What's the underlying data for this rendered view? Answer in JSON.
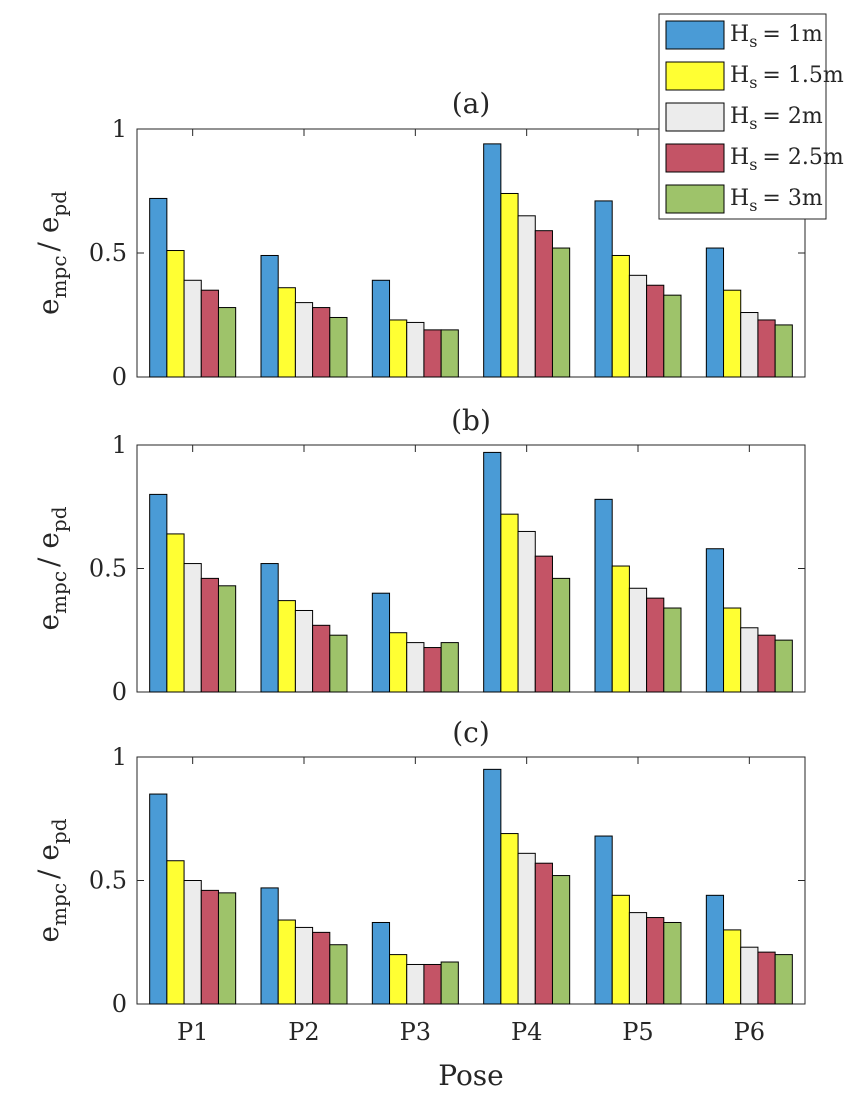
{
  "colors": {
    "series": [
      "#4a9bd6",
      "#ffff33",
      "#ececec",
      "#c45466",
      "#9ec36a"
    ],
    "axis": "#262626",
    "bar_edge": "#000000"
  },
  "xlabel": "Pose",
  "legend": {
    "prefix": "H",
    "subscript": "s",
    "values": [
      "= 1m",
      "= 1.5m",
      "= 2m",
      "= 2.5m",
      "= 3m"
    ]
  },
  "chart_data": [
    {
      "type": "bar",
      "title": "(a)",
      "ylabel_main": [
        "e",
        "/ e"
      ],
      "ylabel_sub": [
        "mpc",
        "pd"
      ],
      "ylim": [
        0,
        1
      ],
      "yticks": [
        "0",
        "0.5",
        "1"
      ],
      "categories": [
        "P1",
        "P2",
        "P3",
        "P4",
        "P5",
        "P6"
      ],
      "series": [
        {
          "name": "Hs = 1m",
          "values": [
            0.72,
            0.49,
            0.39,
            0.94,
            0.71,
            0.52
          ]
        },
        {
          "name": "Hs = 1.5m",
          "values": [
            0.51,
            0.36,
            0.23,
            0.74,
            0.49,
            0.35
          ]
        },
        {
          "name": "Hs = 2m",
          "values": [
            0.39,
            0.3,
            0.22,
            0.65,
            0.41,
            0.26
          ]
        },
        {
          "name": "Hs = 2.5m",
          "values": [
            0.35,
            0.28,
            0.19,
            0.59,
            0.37,
            0.23
          ]
        },
        {
          "name": "Hs = 3m",
          "values": [
            0.28,
            0.24,
            0.19,
            0.52,
            0.33,
            0.21
          ]
        }
      ]
    },
    {
      "type": "bar",
      "title": "(b)",
      "ylabel_main": [
        "e",
        "/ e"
      ],
      "ylabel_sub": [
        "mpc",
        "pd"
      ],
      "ylim": [
        0,
        1
      ],
      "yticks": [
        "0",
        "0.5",
        "1"
      ],
      "categories": [
        "P1",
        "P2",
        "P3",
        "P4",
        "P5",
        "P6"
      ],
      "series": [
        {
          "name": "Hs = 1m",
          "values": [
            0.8,
            0.52,
            0.4,
            0.97,
            0.78,
            0.58
          ]
        },
        {
          "name": "Hs = 1.5m",
          "values": [
            0.64,
            0.37,
            0.24,
            0.72,
            0.51,
            0.34
          ]
        },
        {
          "name": "Hs = 2m",
          "values": [
            0.52,
            0.33,
            0.2,
            0.65,
            0.42,
            0.26
          ]
        },
        {
          "name": "Hs = 2.5m",
          "values": [
            0.46,
            0.27,
            0.18,
            0.55,
            0.38,
            0.23
          ]
        },
        {
          "name": "Hs = 3m",
          "values": [
            0.43,
            0.23,
            0.2,
            0.46,
            0.34,
            0.21
          ]
        }
      ]
    },
    {
      "type": "bar",
      "title": "(c)",
      "ylabel_main": [
        "e",
        "/ e"
      ],
      "ylabel_sub": [
        "mpc",
        "pd"
      ],
      "ylim": [
        0,
        1
      ],
      "yticks": [
        "0",
        "0.5",
        "1"
      ],
      "categories": [
        "P1",
        "P2",
        "P3",
        "P4",
        "P5",
        "P6"
      ],
      "series": [
        {
          "name": "Hs = 1m",
          "values": [
            0.85,
            0.47,
            0.33,
            0.95,
            0.68,
            0.44
          ]
        },
        {
          "name": "Hs = 1.5m",
          "values": [
            0.58,
            0.34,
            0.2,
            0.69,
            0.44,
            0.3
          ]
        },
        {
          "name": "Hs = 2m",
          "values": [
            0.5,
            0.31,
            0.16,
            0.61,
            0.37,
            0.23
          ]
        },
        {
          "name": "Hs = 2.5m",
          "values": [
            0.46,
            0.29,
            0.16,
            0.57,
            0.35,
            0.21
          ]
        },
        {
          "name": "Hs = 3m",
          "values": [
            0.45,
            0.24,
            0.17,
            0.52,
            0.33,
            0.2
          ]
        }
      ]
    }
  ]
}
